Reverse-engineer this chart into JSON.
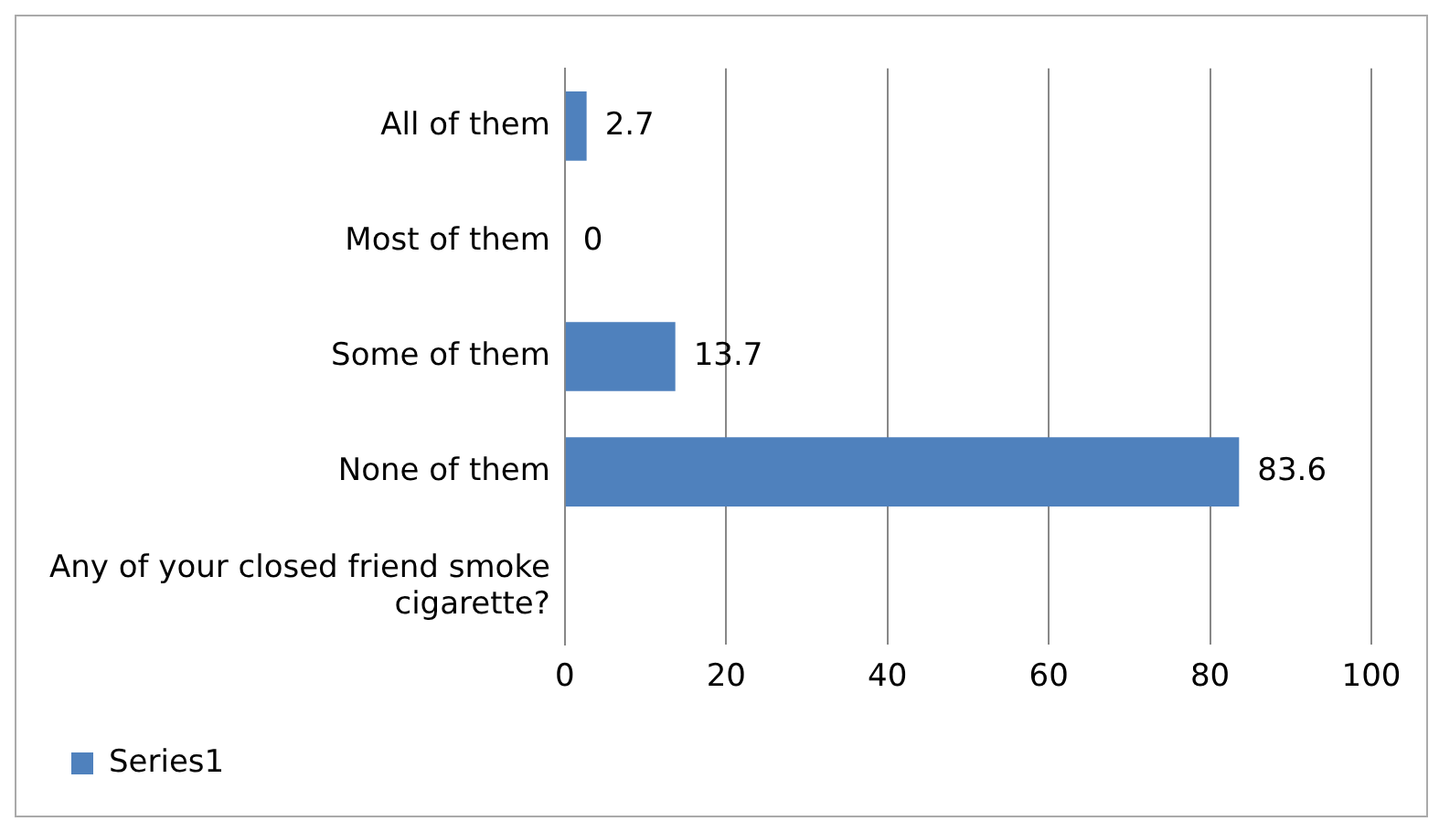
{
  "chart_data": {
    "type": "bar",
    "orientation": "horizontal",
    "categories": [
      "All of them",
      "Most of them",
      "Some of them",
      "None of them",
      "Any of your closed friend smoke cigarette?"
    ],
    "series": [
      {
        "name": "Series1",
        "color": "#4f81bd",
        "values": [
          2.7,
          0,
          13.7,
          83.6,
          null
        ]
      }
    ],
    "xlim": [
      0,
      100
    ],
    "xticks": [
      0,
      20,
      40,
      60,
      80,
      100
    ],
    "grid": "x",
    "legend": "bottom",
    "data_labels": true
  }
}
